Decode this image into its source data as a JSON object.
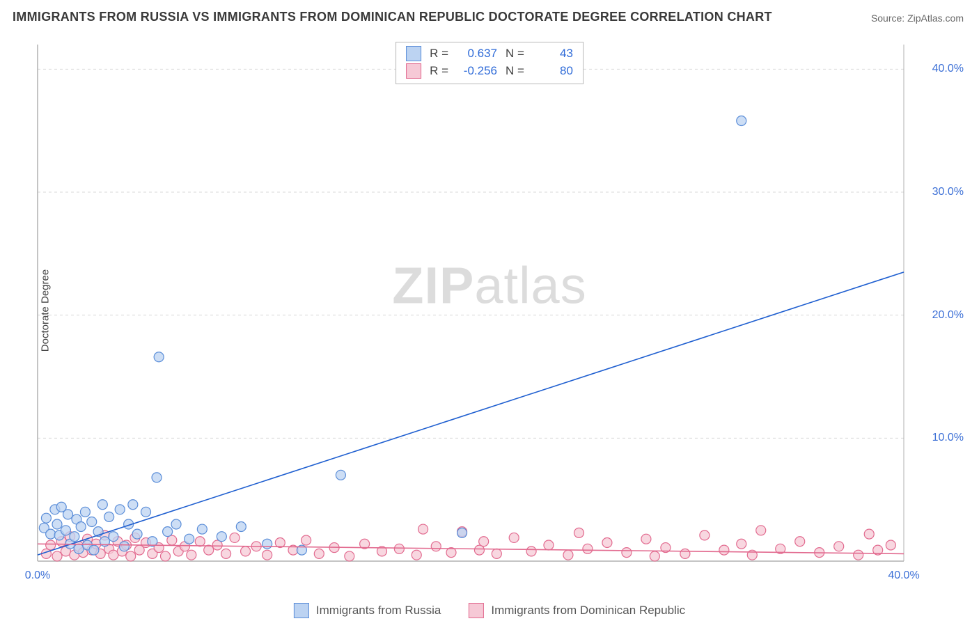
{
  "title": "IMMIGRANTS FROM RUSSIA VS IMMIGRANTS FROM DOMINICAN REPUBLIC DOCTORATE DEGREE CORRELATION CHART",
  "source_label": "Source: ",
  "source_name": "ZipAtlas.com",
  "ylabel": "Doctorate Degree",
  "watermark_a": "ZIP",
  "watermark_b": "atlas",
  "chart": {
    "type": "scatter-with-regression",
    "background_color": "#ffffff",
    "grid_color": "#d8d8d8",
    "axis_color": "#b0b0b0",
    "xlim": [
      0,
      40
    ],
    "ylim": [
      0,
      42
    ],
    "xtick_positions": [
      0,
      40
    ],
    "xtick_labels": [
      "0.0%",
      "40.0%"
    ],
    "ytick_positions": [
      10,
      20,
      30,
      40
    ],
    "ytick_labels": [
      "10.0%",
      "20.0%",
      "30.0%",
      "40.0%"
    ],
    "tick_label_color": "#3b6fd6",
    "tick_fontsize": 16,
    "marker_radius": 7,
    "marker_stroke_width": 1.2,
    "line_width": 1.6,
    "series": [
      {
        "key": "russia",
        "legend_label": "Immigrants from Russia",
        "fill": "#bcd3f2",
        "stroke": "#5a8dd8",
        "line_color": "#1f5fd0",
        "R_label": "R =",
        "R": "0.637",
        "N_label": "N =",
        "N": "43",
        "regression": {
          "x1": 0,
          "y1": 0.5,
          "x2": 40,
          "y2": 23.5
        },
        "points": [
          [
            0.3,
            2.7
          ],
          [
            0.4,
            3.5
          ],
          [
            0.6,
            2.2
          ],
          [
            0.8,
            4.2
          ],
          [
            0.9,
            3.0
          ],
          [
            1.0,
            2.1
          ],
          [
            1.1,
            4.4
          ],
          [
            1.3,
            2.5
          ],
          [
            1.4,
            3.8
          ],
          [
            1.5,
            1.4
          ],
          [
            1.7,
            2.0
          ],
          [
            1.8,
            3.4
          ],
          [
            1.9,
            1.0
          ],
          [
            2.0,
            2.8
          ],
          [
            2.2,
            4.0
          ],
          [
            2.3,
            1.3
          ],
          [
            2.5,
            3.2
          ],
          [
            2.6,
            0.9
          ],
          [
            2.8,
            2.4
          ],
          [
            3.0,
            4.6
          ],
          [
            3.1,
            1.6
          ],
          [
            3.3,
            3.6
          ],
          [
            3.5,
            2.0
          ],
          [
            3.8,
            4.2
          ],
          [
            4.0,
            1.2
          ],
          [
            4.2,
            3.0
          ],
          [
            4.4,
            4.6
          ],
          [
            4.6,
            2.2
          ],
          [
            5.0,
            4.0
          ],
          [
            5.3,
            1.6
          ],
          [
            5.5,
            6.8
          ],
          [
            6.0,
            2.4
          ],
          [
            6.4,
            3.0
          ],
          [
            7.0,
            1.8
          ],
          [
            7.6,
            2.6
          ],
          [
            8.5,
            2.0
          ],
          [
            9.4,
            2.8
          ],
          [
            10.6,
            1.4
          ],
          [
            12.2,
            0.9
          ],
          [
            14.0,
            7.0
          ],
          [
            19.6,
            2.3
          ],
          [
            5.6,
            16.6
          ],
          [
            32.5,
            35.8
          ]
        ]
      },
      {
        "key": "dominican",
        "legend_label": "Immigrants from Dominican Republic",
        "fill": "#f6c9d6",
        "stroke": "#e26a8f",
        "line_color": "#e26a8f",
        "R_label": "R =",
        "R": "-0.256",
        "N_label": "N =",
        "N": "80",
        "regression": {
          "x1": 0,
          "y1": 1.4,
          "x2": 40,
          "y2": 0.6
        },
        "points": [
          [
            0.4,
            0.6
          ],
          [
            0.6,
            1.3
          ],
          [
            0.9,
            0.4
          ],
          [
            1.1,
            1.6
          ],
          [
            1.3,
            0.8
          ],
          [
            1.5,
            2.0
          ],
          [
            1.7,
            0.5
          ],
          [
            1.9,
            1.2
          ],
          [
            2.1,
            0.7
          ],
          [
            2.3,
            1.8
          ],
          [
            2.5,
            0.9
          ],
          [
            2.7,
            1.4
          ],
          [
            2.9,
            0.6
          ],
          [
            3.1,
            2.1
          ],
          [
            3.3,
            1.0
          ],
          [
            3.5,
            0.5
          ],
          [
            3.7,
            1.6
          ],
          [
            3.9,
            0.8
          ],
          [
            4.1,
            1.3
          ],
          [
            4.3,
            0.4
          ],
          [
            4.5,
            1.9
          ],
          [
            4.7,
            0.9
          ],
          [
            5.0,
            1.5
          ],
          [
            5.3,
            0.6
          ],
          [
            5.6,
            1.1
          ],
          [
            5.9,
            0.4
          ],
          [
            6.2,
            1.7
          ],
          [
            6.5,
            0.8
          ],
          [
            6.8,
            1.2
          ],
          [
            7.1,
            0.5
          ],
          [
            7.5,
            1.6
          ],
          [
            7.9,
            0.9
          ],
          [
            8.3,
            1.3
          ],
          [
            8.7,
            0.6
          ],
          [
            9.1,
            1.9
          ],
          [
            9.6,
            0.8
          ],
          [
            10.1,
            1.2
          ],
          [
            10.6,
            0.5
          ],
          [
            11.2,
            1.5
          ],
          [
            11.8,
            0.9
          ],
          [
            12.4,
            1.7
          ],
          [
            13.0,
            0.6
          ],
          [
            13.7,
            1.1
          ],
          [
            14.4,
            0.4
          ],
          [
            15.1,
            1.4
          ],
          [
            15.9,
            0.8
          ],
          [
            16.7,
            1.0
          ],
          [
            17.5,
            0.5
          ],
          [
            17.8,
            2.6
          ],
          [
            18.4,
            1.2
          ],
          [
            19.1,
            0.7
          ],
          [
            19.6,
            2.4
          ],
          [
            20.4,
            0.9
          ],
          [
            20.6,
            1.6
          ],
          [
            21.2,
            0.6
          ],
          [
            22.0,
            1.9
          ],
          [
            22.8,
            0.8
          ],
          [
            23.6,
            1.3
          ],
          [
            24.5,
            0.5
          ],
          [
            25.0,
            2.3
          ],
          [
            25.4,
            1.0
          ],
          [
            26.3,
            1.5
          ],
          [
            27.2,
            0.7
          ],
          [
            28.1,
            1.8
          ],
          [
            28.5,
            0.4
          ],
          [
            29.0,
            1.1
          ],
          [
            29.9,
            0.6
          ],
          [
            30.8,
            2.1
          ],
          [
            31.7,
            0.9
          ],
          [
            32.5,
            1.4
          ],
          [
            33.0,
            0.5
          ],
          [
            33.4,
            2.5
          ],
          [
            34.3,
            1.0
          ],
          [
            35.2,
            1.6
          ],
          [
            36.1,
            0.7
          ],
          [
            37.0,
            1.2
          ],
          [
            37.9,
            0.5
          ],
          [
            38.4,
            2.2
          ],
          [
            38.8,
            0.9
          ],
          [
            39.4,
            1.3
          ]
        ]
      }
    ]
  },
  "legend": {
    "swatch_border_blue": "#5a8dd8",
    "swatch_fill_blue": "#bcd3f2",
    "swatch_border_pink": "#e26a8f",
    "swatch_fill_pink": "#f6c9d6"
  }
}
